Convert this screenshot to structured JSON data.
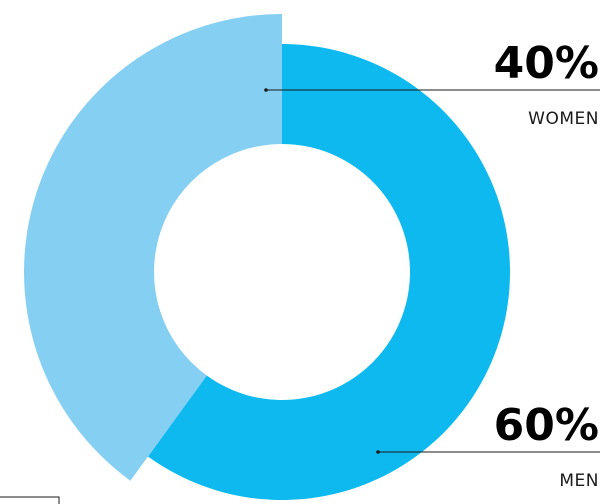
{
  "chart_data": {
    "type": "pie",
    "variant": "donut",
    "slices": [
      {
        "label": "MEN",
        "value": 60,
        "value_label": "60%",
        "color": "#0DB9EF",
        "emphasized": false
      },
      {
        "label": "WOMEN",
        "value": 40,
        "value_label": "40%",
        "color": "#85CFF3",
        "emphasized": true
      }
    ],
    "legend": "none",
    "labels_placement": "callouts-right"
  }
}
